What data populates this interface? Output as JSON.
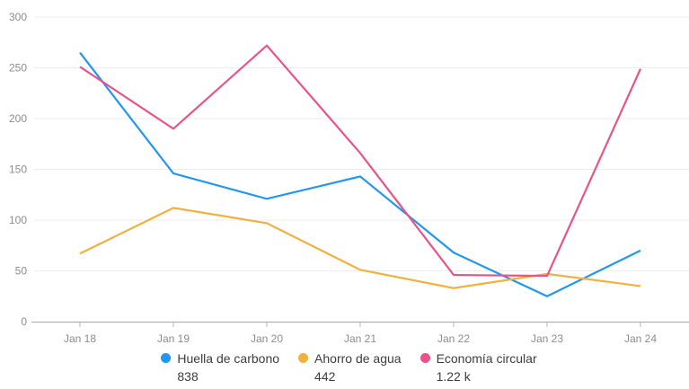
{
  "chart_data": {
    "type": "line",
    "title": "",
    "xlabel": "",
    "ylabel": "",
    "ylim": [
      0,
      300
    ],
    "yticks": [
      0,
      50,
      100,
      150,
      200,
      250,
      300
    ],
    "grid": "horizontal",
    "legend_position": "bottom",
    "categories": [
      "Jan 18",
      "Jan 19",
      "Jan 20",
      "Jan 21",
      "Jan 22",
      "Jan 23",
      "Jan 24"
    ],
    "series": [
      {
        "name": "Huella de carbono",
        "total_label": "838",
        "color": "#2196f3",
        "values": [
          265,
          146,
          121,
          143,
          68,
          25,
          70
        ]
      },
      {
        "name": "Ahorro de agua",
        "total_label": "442",
        "color": "#f0b13e",
        "values": [
          67,
          112,
          97,
          51,
          33,
          47,
          35
        ]
      },
      {
        "name": "Economía circular",
        "total_label": "1.22 k",
        "color": "#e8548a",
        "values": [
          251,
          190,
          272,
          166,
          46,
          45,
          249
        ]
      }
    ],
    "colors": {
      "grid_line": "#ededed",
      "axis_line": "#a8a8a8",
      "tick_mark": "#b5b5b5",
      "axis_label": "#8c8c8c"
    }
  }
}
